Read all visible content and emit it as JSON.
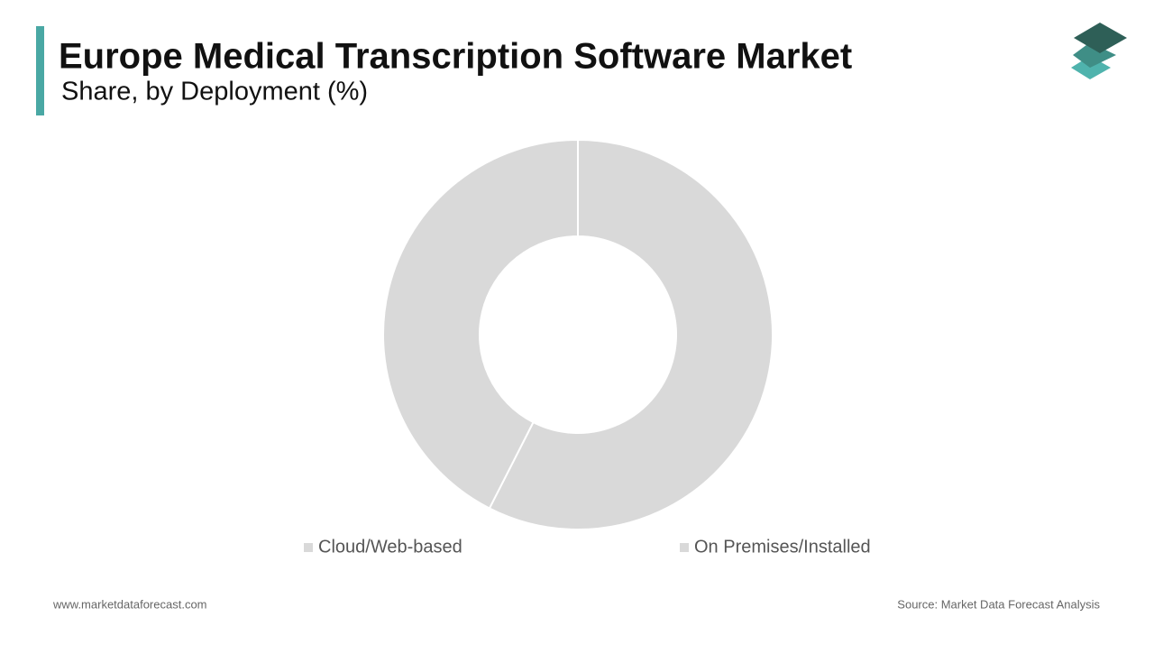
{
  "chart_data": {
    "type": "pie",
    "donut": true,
    "title": "Europe Medical Transcription Software Market",
    "subtitle": "Share, by Deployment (%)",
    "categories": [
      "Cloud/Web-based",
      "On Premises/Installed"
    ],
    "values": [
      57.5,
      42.5
    ],
    "colors": [
      "#d9d9d9",
      "#d9d9d9"
    ]
  },
  "footer": {
    "website": "www.marketdataforecast.com",
    "source": "Source: Market Data Forecast Analysis"
  }
}
